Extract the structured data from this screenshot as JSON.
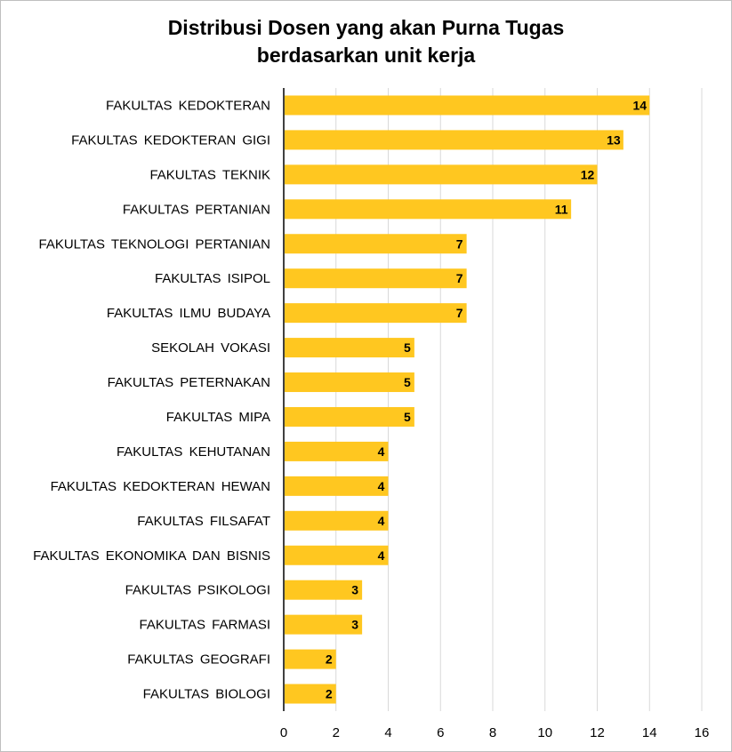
{
  "chart_data": {
    "type": "bar",
    "orientation": "horizontal",
    "title_line1": "Distribusi Dosen yang akan Purna Tugas",
    "title_line2": "berdasarkan unit kerja",
    "xlabel": "",
    "ylabel": "",
    "categories": [
      "FAKULTAS KEDOKTERAN",
      "FAKULTAS KEDOKTERAN GIGI",
      "FAKULTAS TEKNIK",
      "FAKULTAS PERTANIAN",
      "FAKULTAS TEKNOLOGI PERTANIAN",
      "FAKULTAS ISIPOL",
      "FAKULTAS ILMU BUDAYA",
      "SEKOLAH VOKASI",
      "FAKULTAS PETERNAKAN",
      "FAKULTAS MIPA",
      "FAKULTAS KEHUTANAN",
      "FAKULTAS KEDOKTERAN HEWAN",
      "FAKULTAS FILSAFAT",
      "FAKULTAS EKONOMIKA DAN BISNIS",
      "FAKULTAS PSIKOLOGI",
      "FAKULTAS FARMASI",
      "FAKULTAS GEOGRAFI",
      "FAKULTAS BIOLOGI"
    ],
    "values": [
      14,
      13,
      12,
      11,
      7,
      7,
      7,
      5,
      5,
      5,
      4,
      4,
      4,
      4,
      3,
      3,
      2,
      2
    ],
    "xlim": [
      0,
      16
    ],
    "xticks": [
      0,
      2,
      4,
      6,
      8,
      10,
      12,
      14,
      16
    ],
    "grid": "vertical",
    "bar_color": "#FFC720",
    "grid_color": "#d9d9d9",
    "axis_color": "#404040",
    "legend": "none"
  }
}
